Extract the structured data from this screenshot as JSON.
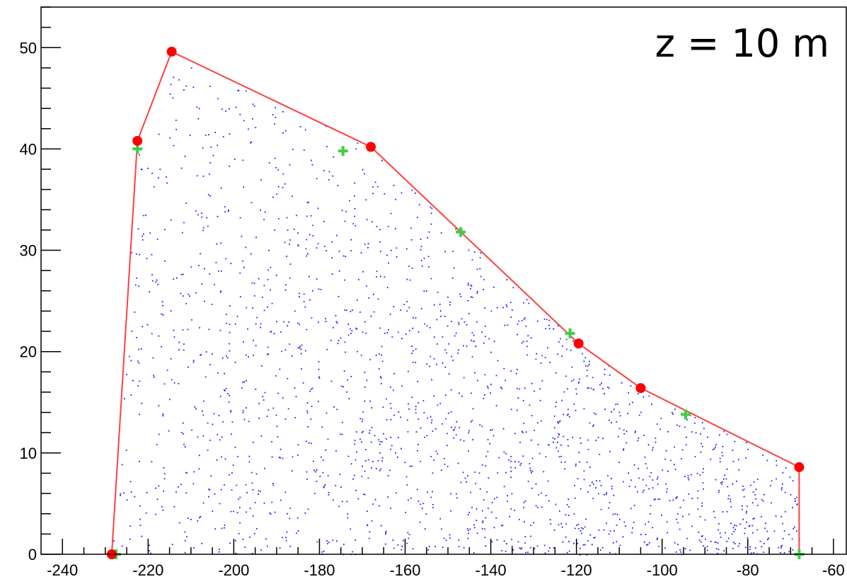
{
  "chart_data": {
    "type": "scatter",
    "title": "",
    "xlabel": "",
    "ylabel": "",
    "xlim": [
      -245,
      -57
    ],
    "ylim": [
      0,
      54
    ],
    "x_ticks": [
      -240,
      -220,
      -200,
      -180,
      -160,
      -140,
      -120,
      -100,
      -80,
      -60
    ],
    "y_ticks": [
      0,
      10,
      20,
      30,
      40,
      50
    ],
    "annotation": "z = 10 m",
    "grid": false,
    "colors": {
      "scatter": "#1f1fff",
      "boundary": "#ff4040",
      "red_points": "#ff0000",
      "green_points": "#44cc44"
    },
    "boundary_polygon": [
      [
        -228.5,
        0
      ],
      [
        -222.5,
        40.8
      ],
      [
        -214.5,
        49.6
      ],
      [
        -168,
        40.2
      ],
      [
        -119.5,
        20.8
      ],
      [
        -105,
        16.4
      ],
      [
        -68,
        8.6
      ],
      [
        -68,
        0
      ]
    ],
    "red_points": [
      [
        -228.5,
        0
      ],
      [
        -222.5,
        40.8
      ],
      [
        -214.5,
        49.6
      ],
      [
        -168,
        40.2
      ],
      [
        -119.5,
        20.8
      ],
      [
        -105,
        16.4
      ],
      [
        -68,
        8.6
      ]
    ],
    "green_points": [
      [
        -227.5,
        0
      ],
      [
        -222.5,
        40
      ],
      [
        -174.5,
        39.8
      ],
      [
        -147,
        31.8
      ],
      [
        -121.5,
        21.8
      ],
      [
        -94.5,
        13.8
      ],
      [
        -68,
        0
      ]
    ],
    "scatter_region": "filled interior of boundary polygon, density increasing toward low y and large x"
  }
}
